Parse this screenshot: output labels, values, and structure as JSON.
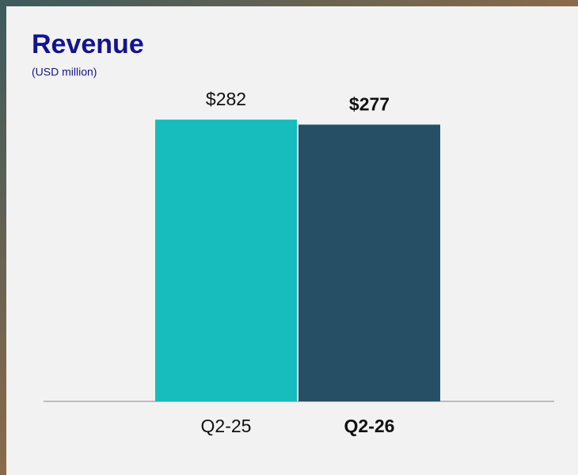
{
  "chart_data": {
    "type": "bar",
    "title": "Revenue",
    "subtitle": "(USD million)",
    "categories": [
      "Q2-25",
      "Q2-26"
    ],
    "values": [
      282,
      277
    ],
    "value_labels": [
      "$282",
      "$277"
    ],
    "colors": [
      "#17bcbc",
      "#264f66"
    ],
    "bold": [
      false,
      true
    ],
    "ylim": [
      0,
      300
    ],
    "grid": false
  }
}
